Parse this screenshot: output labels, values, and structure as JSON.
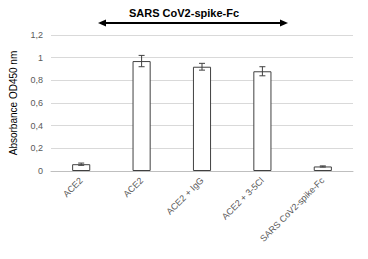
{
  "chart_data": {
    "type": "bar",
    "title": "SARS CoV2-spike-Fc",
    "ylabel": "Absorbance OD450 nm",
    "categories": [
      "ACE2",
      "ACE2",
      "ACE2 + IgG",
      "ACE2 + 3-5Cl",
      "SARS CoV2-spike-Fc"
    ],
    "values": [
      0.06,
      0.97,
      0.92,
      0.88,
      0.04
    ],
    "errors": [
      0.01,
      0.05,
      0.03,
      0.04,
      0.005
    ],
    "color": "#ffffff",
    "ylim": [
      0,
      1.2
    ],
    "yticks": [
      0,
      {
        "value": 0.2,
        "label": "0,2"
      },
      {
        "value": 0.4,
        "label": "0,4"
      },
      {
        "value": 0.6,
        "label": "0,6"
      },
      {
        "value": 0.8,
        "label": "0,8"
      },
      1,
      {
        "value": 1.2,
        "label": "1,2"
      }
    ],
    "grid": true
  }
}
